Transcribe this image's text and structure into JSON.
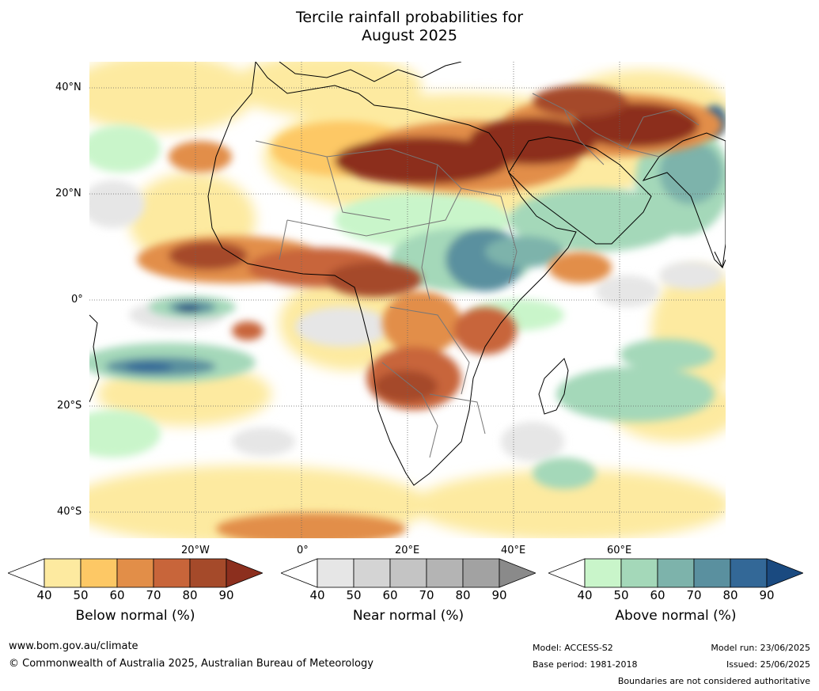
{
  "title": {
    "line1": "Tercile rainfall probabilities for",
    "line2": "August 2025"
  },
  "map": {
    "lat_labels": [
      "40°N",
      "20°N",
      "0°",
      "20°S",
      "40°S"
    ],
    "lon_labels": [
      "20°W",
      "0°",
      "20°E",
      "40°E",
      "60°E"
    ]
  },
  "colorbars": [
    {
      "name": "Below normal (%)",
      "ticks": [
        "40",
        "50",
        "60",
        "70",
        "80",
        "90"
      ],
      "colors": [
        "#ffffff",
        "#fdeaa0",
        "#fdc865",
        "#e28e48",
        "#c8653a",
        "#a54a2a",
        "#8c2f1e"
      ]
    },
    {
      "name": "Near normal (%)",
      "ticks": [
        "40",
        "50",
        "60",
        "70",
        "80",
        "90"
      ],
      "colors": [
        "#ffffff",
        "#e6e6e6",
        "#d4d4d4",
        "#c4c4c4",
        "#b4b4b4",
        "#a2a2a2",
        "#8a8a8a"
      ]
    },
    {
      "name": "Above normal (%)",
      "ticks": [
        "40",
        "50",
        "60",
        "70",
        "80",
        "90"
      ],
      "colors": [
        "#ffffff",
        "#c9f5ca",
        "#a4d8b9",
        "#7db3ab",
        "#5a909f",
        "#336897",
        "#1a4a80"
      ]
    }
  ],
  "footer": {
    "website": "www.bom.gov.au/climate",
    "copyright": "© Commonwealth of Australia 2025, Australian Bureau of Meteorology",
    "model": "Model: ACCESS-S2",
    "base_period": "Base period: 1981-2018",
    "model_run": "Model run: 23/06/2025",
    "issued": "Issued: 25/06/2025",
    "disclaimer": "Boundaries are not considered authoritative"
  }
}
